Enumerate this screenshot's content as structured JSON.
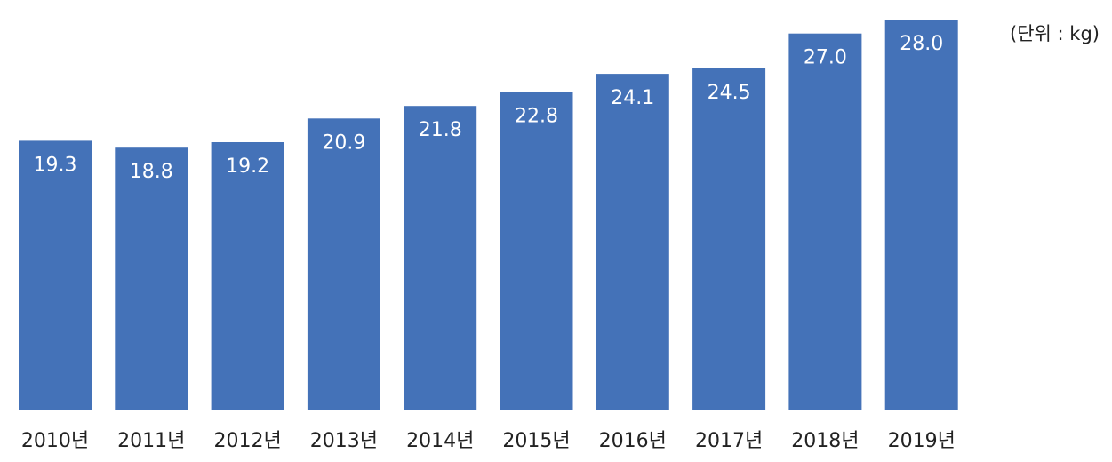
{
  "chart_data": {
    "type": "bar",
    "unit_label": "(단위 : kg)",
    "categories": [
      "2010년",
      "2011년",
      "2012년",
      "2013년",
      "2014년",
      "2015년",
      "2016년",
      "2017년",
      "2018년",
      "2019년"
    ],
    "values": [
      19.3,
      18.8,
      19.2,
      20.9,
      21.8,
      22.8,
      24.1,
      24.5,
      27.0,
      28.0
    ],
    "value_labels": [
      "19.3",
      "18.8",
      "19.2",
      "20.9",
      "21.8",
      "22.8",
      "24.1",
      "24.5",
      "27.0",
      "28.0"
    ],
    "ylim": [
      0,
      28.0
    ],
    "grid": false,
    "legend": "none",
    "bar_color": "#4472B8",
    "label_color": "#FFFFFF"
  }
}
